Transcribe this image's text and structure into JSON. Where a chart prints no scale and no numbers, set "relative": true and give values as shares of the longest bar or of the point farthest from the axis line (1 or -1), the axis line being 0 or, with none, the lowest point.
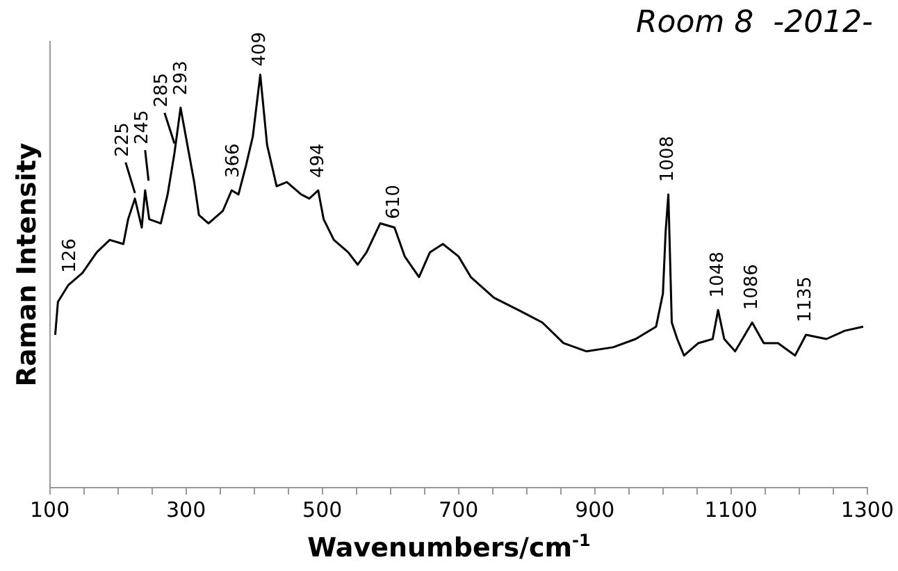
{
  "chart_data": {
    "type": "line",
    "title": "Room 8  -2012-",
    "xlabel": "Wavenumbers/cm$^{-1}$",
    "ylabel": "Raman Intensity",
    "relative": true,
    "color": "#000000",
    "marker": "none",
    "grid": false,
    "legend": false,
    "xlim": [
      100,
      1300
    ],
    "xticks": [
      100,
      {
        "value": 150,
        "label": null
      },
      {
        "value": 200,
        "label": null
      },
      {
        "value": 250,
        "label": null
      },
      300,
      {
        "value": 350,
        "label": null
      },
      {
        "value": 400,
        "label": null
      },
      {
        "value": 450,
        "label": null
      },
      500,
      {
        "value": 550,
        "label": null
      },
      {
        "value": 600,
        "label": null
      },
      {
        "value": 650,
        "label": null
      },
      700,
      {
        "value": 750,
        "label": null
      },
      {
        "value": 800,
        "label": null
      },
      {
        "value": 850,
        "label": null
      },
      900,
      {
        "value": 950,
        "label": null
      },
      {
        "value": 1000,
        "label": null
      },
      {
        "value": 1050,
        "label": null
      },
      1100,
      {
        "value": 1150,
        "label": null
      },
      {
        "value": 1200,
        "label": null
      },
      {
        "value": 1250,
        "label": null
      },
      1300
    ],
    "x": [
      108,
      112,
      127,
      148,
      169,
      188,
      208,
      215,
      225,
      235,
      240,
      246,
      263,
      273,
      283,
      292,
      302,
      312,
      319,
      333,
      354,
      367,
      377,
      388,
      398,
      409,
      419,
      433,
      448,
      469,
      481,
      494,
      502,
      517,
      538,
      552,
      565,
      585,
      606,
      621,
      642,
      658,
      677,
      700,
      718,
      752,
      788,
      823,
      854,
      888,
      927,
      960,
      990,
      1000,
      1004,
      1008,
      1013,
      1021,
      1031,
      1052,
      1073,
      1081,
      1090,
      1106,
      1131,
      1148,
      1169,
      1194,
      1210,
      1240,
      1267,
      1294
    ],
    "values": [
      0.37,
      0.45,
      0.49,
      0.52,
      0.57,
      0.6,
      0.59,
      0.65,
      0.7,
      0.63,
      0.72,
      0.65,
      0.64,
      0.71,
      0.81,
      0.92,
      0.83,
      0.74,
      0.66,
      0.64,
      0.67,
      0.72,
      0.71,
      0.78,
      0.85,
      1,
      0.83,
      0.73,
      0.74,
      0.71,
      0.7,
      0.72,
      0.65,
      0.6,
      0.57,
      0.54,
      0.57,
      0.64,
      0.63,
      0.56,
      0.51,
      0.57,
      0.59,
      0.56,
      0.51,
      0.46,
      0.43,
      0.4,
      0.35,
      0.33,
      0.34,
      0.36,
      0.39,
      0.47,
      0.62,
      0.71,
      0.4,
      0.36,
      0.32,
      0.35,
      0.36,
      0.43,
      0.36,
      0.33,
      0.4,
      0.35,
      0.35,
      0.32,
      0.37,
      0.36,
      0.38,
      0.39
    ],
    "annotations": [
      {
        "text": "126",
        "x": 130,
        "y": 0.5
      },
      {
        "text": "225",
        "x": 225,
        "y": 0.7
      },
      {
        "text": "245",
        "x": 245,
        "y": 0.73
      },
      {
        "text": "285",
        "x": 283,
        "y": 0.82
      },
      {
        "text": "293",
        "x": 293,
        "y": 0.93
      },
      {
        "text": "366",
        "x": 370,
        "y": 0.73
      },
      {
        "text": "409",
        "x": 409,
        "y": 1
      },
      {
        "text": "494",
        "x": 494,
        "y": 0.73
      },
      {
        "text": "610",
        "x": 606,
        "y": 0.63
      },
      {
        "text": "1008",
        "x": 1008,
        "y": 0.72
      },
      {
        "text": "1048",
        "x": 1081,
        "y": 0.44
      },
      {
        "text": "1086",
        "x": 1131,
        "y": 0.41
      },
      {
        "text": "1135",
        "x": 1210,
        "y": 0.38
      }
    ]
  }
}
